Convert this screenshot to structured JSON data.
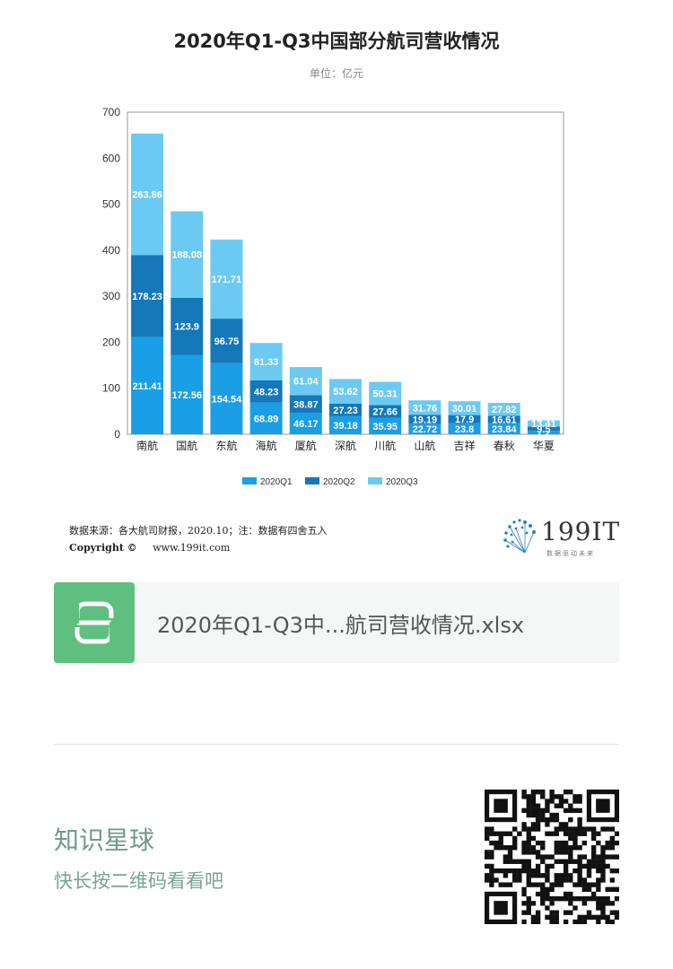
{
  "chart_data": {
    "type": "bar",
    "stacked": true,
    "title": "2020年Q1-Q3中国部分航司营收情况",
    "subtitle": "单位：亿元",
    "categories": [
      "南航",
      "国航",
      "东航",
      "海航",
      "厦航",
      "深航",
      "川航",
      "山航",
      "吉祥",
      "春秋",
      "华夏"
    ],
    "series": [
      {
        "name": "2020Q1",
        "color": "#1a9ee5",
        "values": [
          211.41,
          172.56,
          154.54,
          68.89,
          46.17,
          39.18,
          35.95,
          22.72,
          23.8,
          23.84,
          7.2
        ]
      },
      {
        "name": "2020Q2",
        "color": "#1478b9",
        "values": [
          178.23,
          123.9,
          96.75,
          48.23,
          38.87,
          27.23,
          27.66,
          19.19,
          17.9,
          16.61,
          9.5
        ]
      },
      {
        "name": "2020Q3",
        "color": "#6ccaf2",
        "values": [
          263.86,
          188.08,
          171.71,
          81.33,
          61.04,
          53.62,
          50.31,
          31.76,
          30.01,
          27.82,
          13.41
        ]
      }
    ],
    "data_labels": [
      [
        "211.41",
        "172.56",
        "154.54",
        "68.89",
        "46.17",
        "39.18",
        "35.95",
        "22.72",
        "23.8",
        "23.84",
        "7.2"
      ],
      [
        "178.23",
        "123.9",
        "96.75",
        "48.23",
        "38.87",
        "27.23",
        "27.66",
        "19.19",
        "17.9",
        "16.61",
        "9.5"
      ],
      [
        "263.86",
        "188.08",
        "171.71",
        "81.33",
        "61.04",
        "53.62",
        "50.31",
        "31.76",
        "30.01",
        "27.82",
        "13.41"
      ]
    ],
    "ylim": [
      0,
      700
    ],
    "yticks": [
      0,
      100,
      200,
      300,
      400,
      500,
      600,
      700
    ],
    "grid": false,
    "legend": "bottom-center"
  },
  "footer": {
    "source": "数据来源：各大航司财报，2020.10；注：数据有四舍五入",
    "copyright_label": "Copyright ©",
    "website": "www.199it.com",
    "logo_text": "199IT",
    "logo_tagline": "数据驱动未来"
  },
  "file_card": {
    "file_name": "2020年Q1-Q3中...航司营收情况.xlsx",
    "icon": "spreadsheet-s-icon"
  },
  "promo": {
    "title": "知识星球",
    "subtitle": "快长按二维码看看吧",
    "qr_icon": "qr-code-icon"
  }
}
